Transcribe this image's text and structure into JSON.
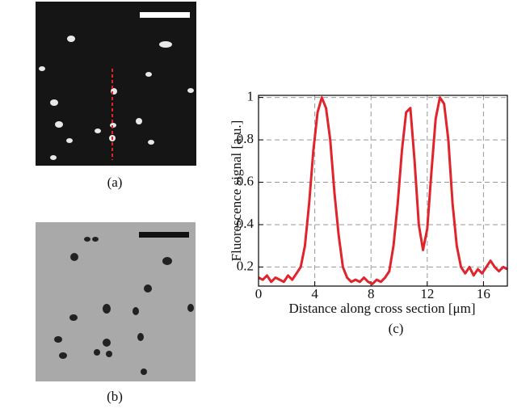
{
  "panels": {
    "a": "(a)",
    "b": "(b)"
  },
  "chart_data": {
    "type": "line",
    "caption": "(c)",
    "x_label": "Distance along cross section [μm]",
    "y_label": "Fluorescence signal [a.u.]",
    "x": [
      0,
      0.3,
      0.6,
      0.9,
      1.2,
      1.5,
      1.8,
      2.1,
      2.4,
      2.7,
      3.0,
      3.3,
      3.6,
      3.9,
      4.2,
      4.5,
      4.8,
      5.1,
      5.4,
      5.7,
      6.0,
      6.3,
      6.6,
      6.9,
      7.2,
      7.5,
      7.8,
      8.1,
      8.4,
      8.7,
      9.0,
      9.3,
      9.6,
      9.9,
      10.2,
      10.5,
      10.8,
      11.1,
      11.4,
      11.7,
      12.0,
      12.3,
      12.6,
      12.9,
      13.2,
      13.5,
      13.8,
      14.1,
      14.4,
      14.7,
      15.0,
      15.3,
      15.6,
      15.9,
      16.2,
      16.5,
      16.8,
      17.1,
      17.4,
      17.7
    ],
    "values": [
      0.15,
      0.14,
      0.16,
      0.13,
      0.15,
      0.14,
      0.13,
      0.16,
      0.14,
      0.17,
      0.2,
      0.3,
      0.5,
      0.75,
      0.93,
      1.0,
      0.95,
      0.8,
      0.55,
      0.35,
      0.2,
      0.15,
      0.13,
      0.14,
      0.13,
      0.15,
      0.13,
      0.12,
      0.14,
      0.13,
      0.15,
      0.18,
      0.3,
      0.5,
      0.75,
      0.93,
      0.95,
      0.7,
      0.4,
      0.28,
      0.38,
      0.65,
      0.9,
      1.0,
      0.97,
      0.8,
      0.5,
      0.3,
      0.2,
      0.17,
      0.2,
      0.16,
      0.19,
      0.17,
      0.2,
      0.23,
      0.2,
      0.18,
      0.2,
      0.19
    ],
    "color": "#e0242b",
    "xlim": [
      0,
      17.7
    ],
    "ylim": [
      0.11,
      1.01
    ],
    "xticks": [
      0,
      4,
      8,
      12,
      16
    ],
    "yticks": [
      0.2,
      0.4,
      0.6,
      0.8,
      1
    ],
    "grid": true
  }
}
